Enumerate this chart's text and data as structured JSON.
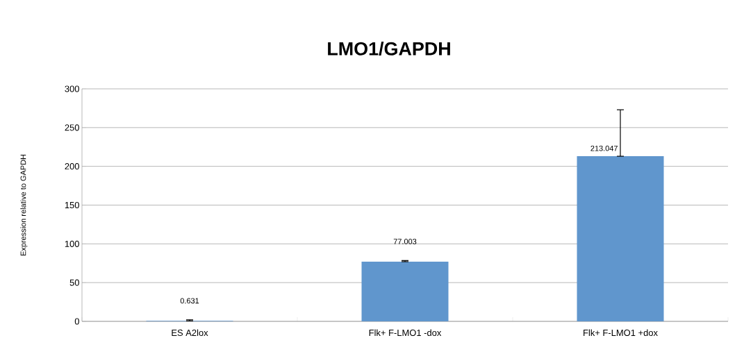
{
  "chart_data": {
    "type": "bar",
    "title": "LMO1/GAPDH",
    "ylabel": "Expression relative to GAPDH",
    "categories": [
      "ES A2lox",
      "Flk+ F-LMO1 -dox",
      "Flk+ F-LMO1 +dox"
    ],
    "values": [
      0.631,
      77.003,
      213.047
    ],
    "errors": [
      [
        0.631,
        2
      ],
      [
        77.003,
        78.5
      ],
      [
        213.047,
        273
      ]
    ],
    "color": "#6096cd",
    "ylim": [
      0,
      300
    ],
    "yticks": [
      0,
      50,
      100,
      150,
      200,
      250,
      300
    ],
    "grid": "y",
    "data_labels": true
  }
}
